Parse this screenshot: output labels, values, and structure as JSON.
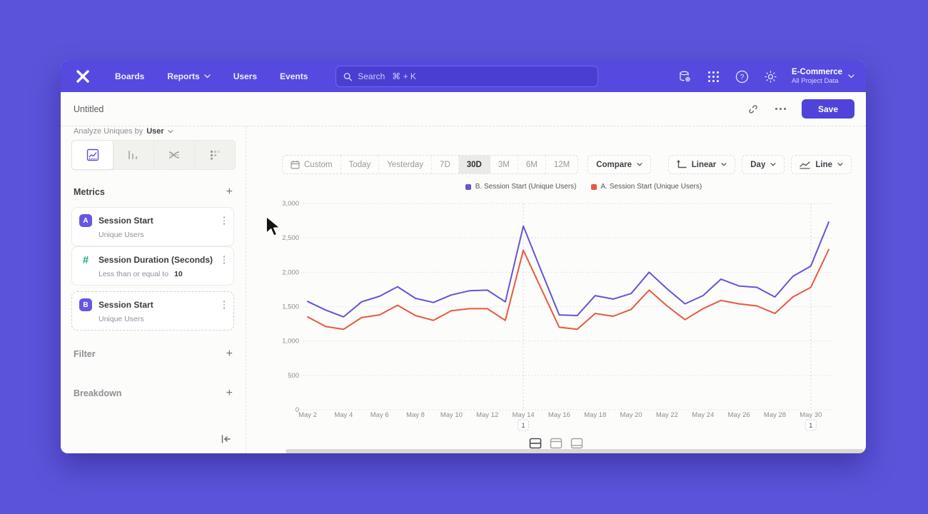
{
  "colors": {
    "background": "#5b53da",
    "navbar": "#5649e0",
    "accent": "#4f43dc",
    "series_b_purple": "#6156d6",
    "series_a_red": "#e45a40"
  },
  "nav": {
    "items": [
      "Boards",
      "Reports",
      "Users",
      "Events"
    ],
    "search_placeholder": "Search   ⌘ + K",
    "project_name": "E-Commerce",
    "project_subtitle": "All Project Data",
    "icons": [
      "data-definitions-icon",
      "apps-grid-icon",
      "help-icon",
      "settings-icon"
    ]
  },
  "titlebar": {
    "title": "Untitled",
    "save": "Save"
  },
  "sidebar": {
    "analyze_prefix": "Analyze Uniques by",
    "analyze_value": "User",
    "metrics_header": "Metrics",
    "add_symbol": "+",
    "cards": [
      {
        "badge": "A",
        "title": "Session Start",
        "subtitle": "Unique Users"
      },
      {
        "badge": "#",
        "title": "Session Duration (Seconds)",
        "subtitle_prefix": "Less than or equal to",
        "subtitle_value": "10"
      },
      {
        "badge": "B",
        "title": "Session Start",
        "subtitle": "Unique Users"
      }
    ],
    "filter_label": "Filter",
    "breakdown_label": "Breakdown"
  },
  "controls": {
    "date_ranges": [
      "Custom",
      "Today",
      "Yesterday",
      "7D",
      "30D",
      "3M",
      "6M",
      "12M"
    ],
    "selected_range": "30D",
    "compare_label": "Compare",
    "scale_label": "Linear",
    "granularity_label": "Day",
    "chart_type_label": "Line"
  },
  "chart_data": {
    "type": "line",
    "title": "",
    "xlabel": "",
    "ylabel": "",
    "ylim": [
      0,
      3000
    ],
    "yticks": [
      0,
      500,
      1000,
      1500,
      2000,
      2500,
      3000
    ],
    "x_tick_every": 2,
    "grid": "horizontal-dotted",
    "legend_position": "top-center",
    "categories": [
      "May 2",
      "May 3",
      "May 4",
      "May 5",
      "May 6",
      "May 7",
      "May 8",
      "May 9",
      "May 10",
      "May 11",
      "May 12",
      "May 13",
      "May 14",
      "May 15",
      "May 16",
      "May 17",
      "May 18",
      "May 19",
      "May 20",
      "May 21",
      "May 22",
      "May 23",
      "May 24",
      "May 25",
      "May 26",
      "May 27",
      "May 28",
      "May 29",
      "May 30",
      "May 31"
    ],
    "series": [
      {
        "name": "B. Session Start (Unique Users)",
        "color": "#6156d6",
        "values": [
          1575,
          1450,
          1350,
          1570,
          1650,
          1790,
          1620,
          1560,
          1670,
          1730,
          1740,
          1570,
          2670,
          2020,
          1380,
          1370,
          1660,
          1610,
          1690,
          2000,
          1760,
          1540,
          1660,
          1900,
          1800,
          1780,
          1640,
          1940,
          2090,
          2730
        ]
      },
      {
        "name": "A. Session Start (Unique Users)",
        "color": "#e45a40",
        "values": [
          1350,
          1210,
          1170,
          1340,
          1380,
          1520,
          1370,
          1300,
          1440,
          1470,
          1470,
          1300,
          2320,
          1760,
          1200,
          1170,
          1400,
          1360,
          1460,
          1740,
          1510,
          1310,
          1470,
          1590,
          1540,
          1510,
          1400,
          1640,
          1780,
          2330
        ]
      }
    ],
    "annotations": [
      {
        "label": "1",
        "index": 12
      },
      {
        "label": "1",
        "index": 28
      }
    ]
  }
}
